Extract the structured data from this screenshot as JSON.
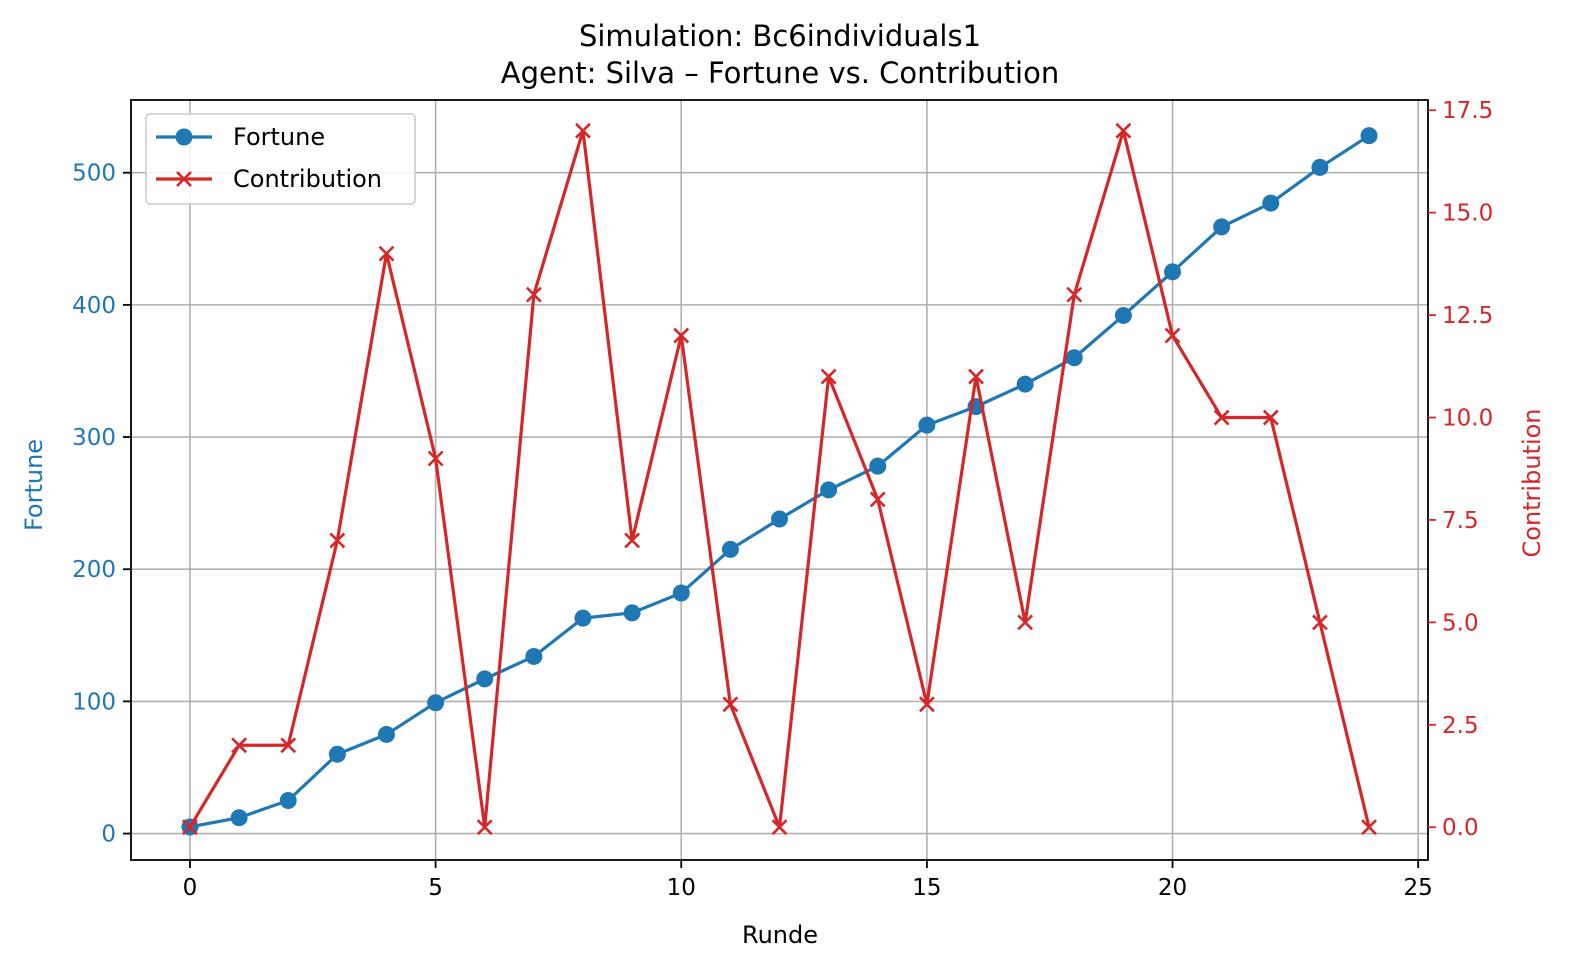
{
  "chart_data": {
    "type": "line",
    "title": "Simulation: Bc6individuals1",
    "subtitle": "Agent: Silva – Fortune vs. Contribution",
    "xlabel": "Runde",
    "ylabel_left": "Fortune",
    "ylabel_right": "Contribution",
    "x": [
      0,
      1,
      2,
      3,
      4,
      5,
      6,
      7,
      8,
      9,
      10,
      11,
      12,
      13,
      14,
      15,
      16,
      17,
      18,
      19,
      20,
      21,
      22,
      23,
      24
    ],
    "xlim": [
      -1.2,
      25.2
    ],
    "ylim_left": [
      -20,
      555
    ],
    "ylim_right": [
      -0.8,
      17.75
    ],
    "x_ticks": [
      0,
      5,
      10,
      15,
      20,
      25
    ],
    "y_ticks_left": [
      0,
      100,
      200,
      300,
      400,
      500
    ],
    "y_ticks_right": [
      0.0,
      2.5,
      5.0,
      7.5,
      10.0,
      12.5,
      15.0,
      17.5
    ],
    "grid": true,
    "legend_position": "upper left",
    "series": [
      {
        "name": "Fortune",
        "axis": "left",
        "color": "#1f77b4",
        "marker": "circle",
        "values": [
          5,
          12,
          25,
          60,
          75,
          99,
          117,
          134,
          163,
          167,
          182,
          215,
          238,
          260,
          278,
          309,
          323,
          340,
          360,
          392,
          425,
          459,
          477,
          504,
          528
        ]
      },
      {
        "name": "Contribution",
        "axis": "right",
        "color": "#d62728",
        "marker": "x",
        "values": [
          0,
          2,
          2,
          7,
          14,
          9,
          0,
          13,
          17,
          7,
          12,
          3,
          0,
          11,
          8,
          3,
          11,
          5,
          13,
          17,
          12,
          10,
          10,
          5,
          0
        ]
      }
    ]
  }
}
